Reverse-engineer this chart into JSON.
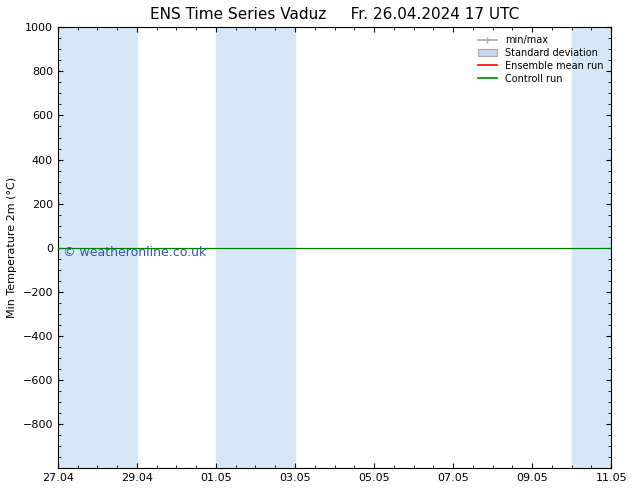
{
  "title": "ENS Time Series Vaduz",
  "date_str": "Fr. 26.04.2024 17 UTC",
  "ylabel": "Min Temperature 2m (°C)",
  "watermark": "© weatheronline.co.uk",
  "ylim_top": -1000,
  "ylim_bottom": 1000,
  "yticks": [
    -800,
    -600,
    -400,
    -200,
    0,
    200,
    400,
    600,
    800,
    1000
  ],
  "xtick_labels": [
    "27.04",
    "29.04",
    "01.05",
    "03.05",
    "05.05",
    "07.05",
    "09.05",
    "11.05"
  ],
  "xtick_positions": [
    0,
    2,
    4,
    6,
    8,
    10,
    12,
    14
  ],
  "xlim": [
    0,
    14
  ],
  "shaded_bands": [
    [
      0,
      1
    ],
    [
      1,
      2
    ],
    [
      4,
      5
    ],
    [
      5,
      6
    ],
    [
      13,
      14
    ]
  ],
  "shaded_color": "#d6e8f7",
  "bg_color": "#ffffff",
  "ensemble_color": "#ff0000",
  "control_color": "#008000",
  "legend_labels": [
    "min/max",
    "Standard deviation",
    "Ensemble mean run",
    "Controll run"
  ],
  "minmax_line_color": "#aaaaaa",
  "std_fill_color": "#c8d8e8",
  "title_fontsize": 11,
  "axis_fontsize": 8,
  "tick_fontsize": 8,
  "watermark_color": "#3355aa",
  "watermark_fontsize": 9
}
